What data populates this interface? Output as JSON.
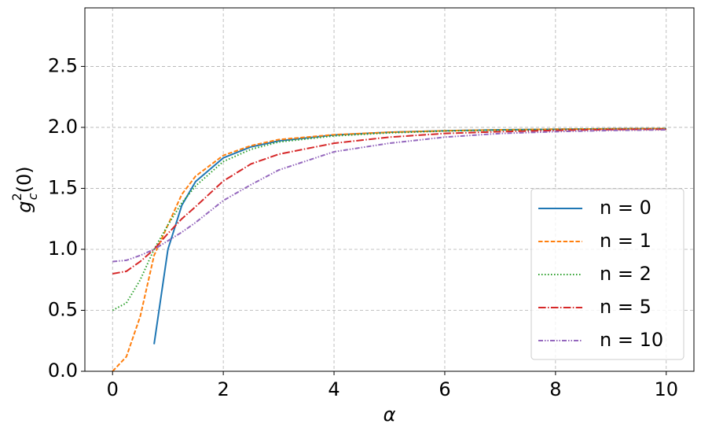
{
  "chart_data": {
    "type": "line",
    "xlabel": "α",
    "ylabel": {
      "base": "g",
      "sub": "c",
      "sup": "2",
      "rest": "(0)"
    },
    "x": [
      0,
      0.25,
      0.5,
      0.75,
      1,
      1.25,
      1.5,
      2,
      2.5,
      3,
      4,
      5,
      6,
      7,
      8,
      9,
      10
    ],
    "series": [
      {
        "name": "n = 0",
        "color": "#1f77b4",
        "linestyle": "solid",
        "values": [
          null,
          null,
          null,
          0.222,
          1.0,
          1.36,
          1.556,
          1.75,
          1.84,
          1.889,
          1.9375,
          1.96,
          1.972,
          1.98,
          1.984,
          1.988,
          1.99
        ]
      },
      {
        "name": "n = 1",
        "color": "#ff7f0e",
        "linestyle": "dashed",
        "values": [
          0,
          0.12,
          0.45,
          0.95,
          1.2,
          1.45,
          1.6,
          1.77,
          1.85,
          1.9,
          1.94,
          1.96,
          1.972,
          1.98,
          1.985,
          1.988,
          1.99
        ]
      },
      {
        "name": "n = 2",
        "color": "#2ca02c",
        "linestyle": "dotted",
        "values": [
          0.5,
          0.56,
          0.75,
          1.0,
          1.2,
          1.38,
          1.52,
          1.72,
          1.82,
          1.88,
          1.93,
          1.955,
          1.97,
          1.978,
          1.983,
          1.987,
          1.99
        ]
      },
      {
        "name": "n = 5",
        "color": "#d62728",
        "linestyle": "dashdot",
        "values": [
          0.8,
          0.82,
          0.9,
          1.0,
          1.13,
          1.25,
          1.35,
          1.56,
          1.7,
          1.78,
          1.87,
          1.92,
          1.95,
          1.965,
          1.975,
          1.982,
          1.985
        ]
      },
      {
        "name": "n = 10",
        "color": "#9467bd",
        "linestyle": "dashdotdot",
        "values": [
          0.9,
          0.91,
          0.95,
          1.0,
          1.07,
          1.14,
          1.22,
          1.4,
          1.53,
          1.65,
          1.8,
          1.87,
          1.92,
          1.95,
          1.965,
          1.975,
          1.98
        ]
      }
    ],
    "xlim": [
      -0.5,
      10.5
    ],
    "ylim": [
      0,
      2.98
    ],
    "xticks": [
      0,
      2,
      4,
      6,
      8,
      10
    ],
    "yticks": [
      {
        "value": 0,
        "label": "0.0"
      },
      0.5,
      {
        "value": 1,
        "label": "1.0"
      },
      1.5,
      {
        "value": 2,
        "label": "2.0"
      },
      2.5
    ],
    "grid": true,
    "legend": "lower right"
  }
}
